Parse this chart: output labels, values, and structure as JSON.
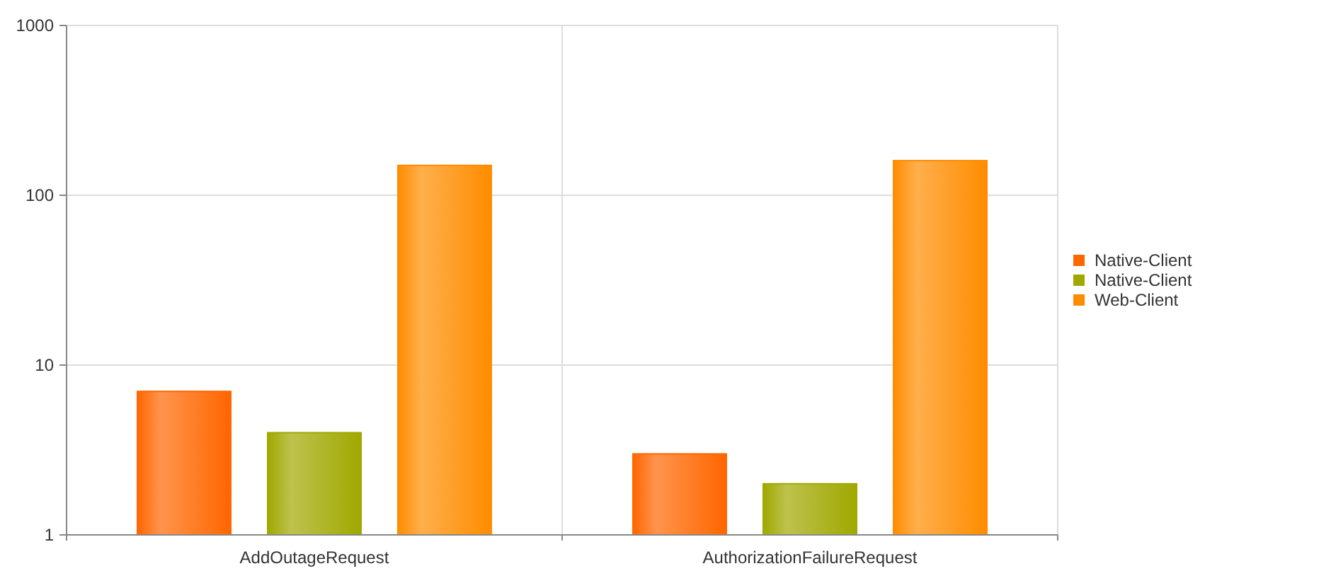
{
  "chart_data": {
    "type": "bar",
    "categories": [
      "AddOutageRequest",
      "AuthorizationFailureRequest"
    ],
    "series": [
      {
        "name": "Native-Client",
        "color": "#ff6600",
        "values": [
          7,
          3
        ]
      },
      {
        "name": "Native-Client",
        "color": "#a0a800",
        "values": [
          4,
          2
        ]
      },
      {
        "name": "Web-Client",
        "color": "#ff8c00",
        "values": [
          150,
          160
        ]
      }
    ],
    "log": true,
    "ylim": [
      1,
      1000
    ],
    "yticks": [
      1,
      10,
      100,
      1000
    ],
    "grid": true,
    "legend": "right"
  }
}
